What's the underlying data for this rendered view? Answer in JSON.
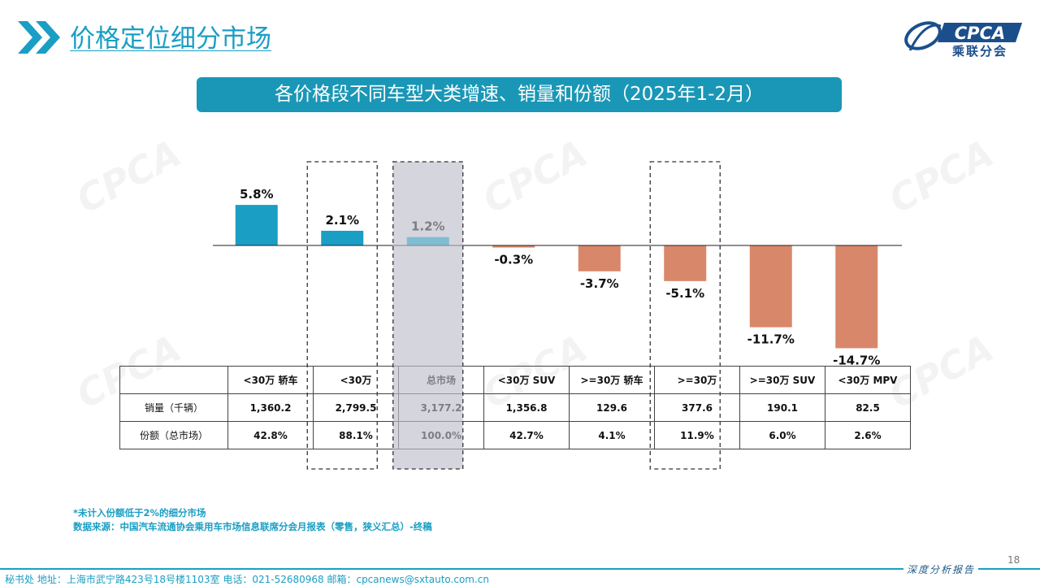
{
  "header": {
    "title": "价格定位细分市场",
    "logo_text": "CPCA",
    "logo_cn": "乘联分会"
  },
  "subtitle": "各价格段不同车型大类增速、销量和份额（2025年1-2月）",
  "colors": {
    "positive": "#1a9ec4",
    "negative": "#d9876a",
    "accent": "#1a9ec4",
    "highlight_band": "#d6d6de"
  },
  "chart_data": {
    "type": "bar",
    "categories": [
      "<30万 轿车",
      "<30万",
      "总市场",
      "<30万 SUV",
      ">=30万 轿车",
      ">=30万",
      ">=30万 SUV",
      "<30万 MPV"
    ],
    "values": [
      5.8,
      2.1,
      1.2,
      -0.3,
      -3.7,
      -5.1,
      -11.7,
      -14.7
    ],
    "value_labels": [
      "5.8%",
      "2.1%",
      "1.2%",
      "-0.3%",
      "-3.7%",
      "-5.1%",
      "-11.7%",
      "-14.7%"
    ],
    "unit": "%",
    "ylim": [
      -15,
      6
    ],
    "grid": false,
    "highlighted_categories": [
      "<30万",
      "总市场",
      ">=30万"
    ]
  },
  "table": {
    "headers": [
      "",
      "<30万 轿车",
      "<30万",
      "总市场",
      "<30万 SUV",
      ">=30万 轿车",
      ">=30万",
      ">=30万 SUV",
      "<30万 MPV"
    ],
    "rows": [
      {
        "label": "销量（千辆）",
        "values": [
          "1,360.2",
          "2,799.5",
          "3,177.2",
          "1,356.8",
          "129.6",
          "377.6",
          "190.1",
          "82.5"
        ]
      },
      {
        "label": "份额（总市场）",
        "values": [
          "42.8%",
          "88.1%",
          "100.0%",
          "42.7%",
          "4.1%",
          "11.9%",
          "6.0%",
          "2.6%"
        ]
      }
    ]
  },
  "footnotes": {
    "note": "*未计入份额低于2%的细分市场",
    "source": "数据来源：中国汽车流通协会乘用车市场信息联席分会月报表（零售，狭义汇总）-终稿"
  },
  "page_number": "18",
  "footer": {
    "address": "秘书处   地址：上海市武宁路423号18号楼1103室  电话：021-52680968   邮箱：cpcanews@sxtauto.com.cn",
    "right": "深度分析报告"
  }
}
